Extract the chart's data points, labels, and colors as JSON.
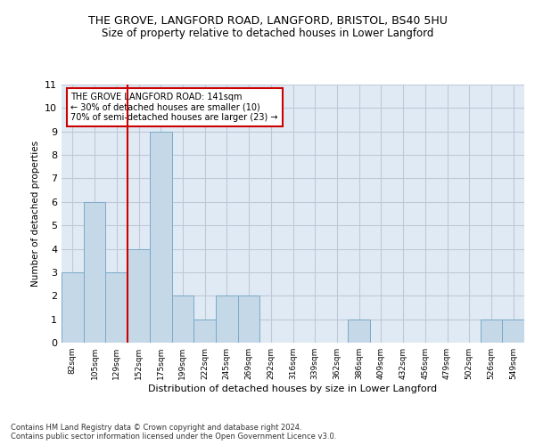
{
  "title1": "THE GROVE, LANGFORD ROAD, LANGFORD, BRISTOL, BS40 5HU",
  "title2": "Size of property relative to detached houses in Lower Langford",
  "xlabel": "Distribution of detached houses by size in Lower Langford",
  "ylabel": "Number of detached properties",
  "categories": [
    "82sqm",
    "105sqm",
    "129sqm",
    "152sqm",
    "175sqm",
    "199sqm",
    "222sqm",
    "245sqm",
    "269sqm",
    "292sqm",
    "316sqm",
    "339sqm",
    "362sqm",
    "386sqm",
    "409sqm",
    "432sqm",
    "456sqm",
    "479sqm",
    "502sqm",
    "526sqm",
    "549sqm"
  ],
  "values": [
    3,
    6,
    3,
    4,
    9,
    2,
    1,
    2,
    2,
    0,
    0,
    0,
    0,
    1,
    0,
    0,
    0,
    0,
    0,
    1,
    1
  ],
  "bar_color": "#c5d8e8",
  "bar_edge_color": "#7aaac8",
  "grid_color": "#c0c8d8",
  "bg_color": "#e0eaf4",
  "red_line_x": 2.5,
  "annotation_text": "THE GROVE LANGFORD ROAD: 141sqm\n← 30% of detached houses are smaller (10)\n70% of semi-detached houses are larger (23) →",
  "annotation_box_color": "#ffffff",
  "annotation_box_edge": "#cc0000",
  "vline_color": "#cc0000",
  "ylim": [
    0,
    11
  ],
  "yticks": [
    0,
    1,
    2,
    3,
    4,
    5,
    6,
    7,
    8,
    9,
    10,
    11
  ],
  "footer": "Contains HM Land Registry data © Crown copyright and database right 2024.\nContains public sector information licensed under the Open Government Licence v3.0.",
  "title_fontsize": 9,
  "subtitle_fontsize": 8.5
}
